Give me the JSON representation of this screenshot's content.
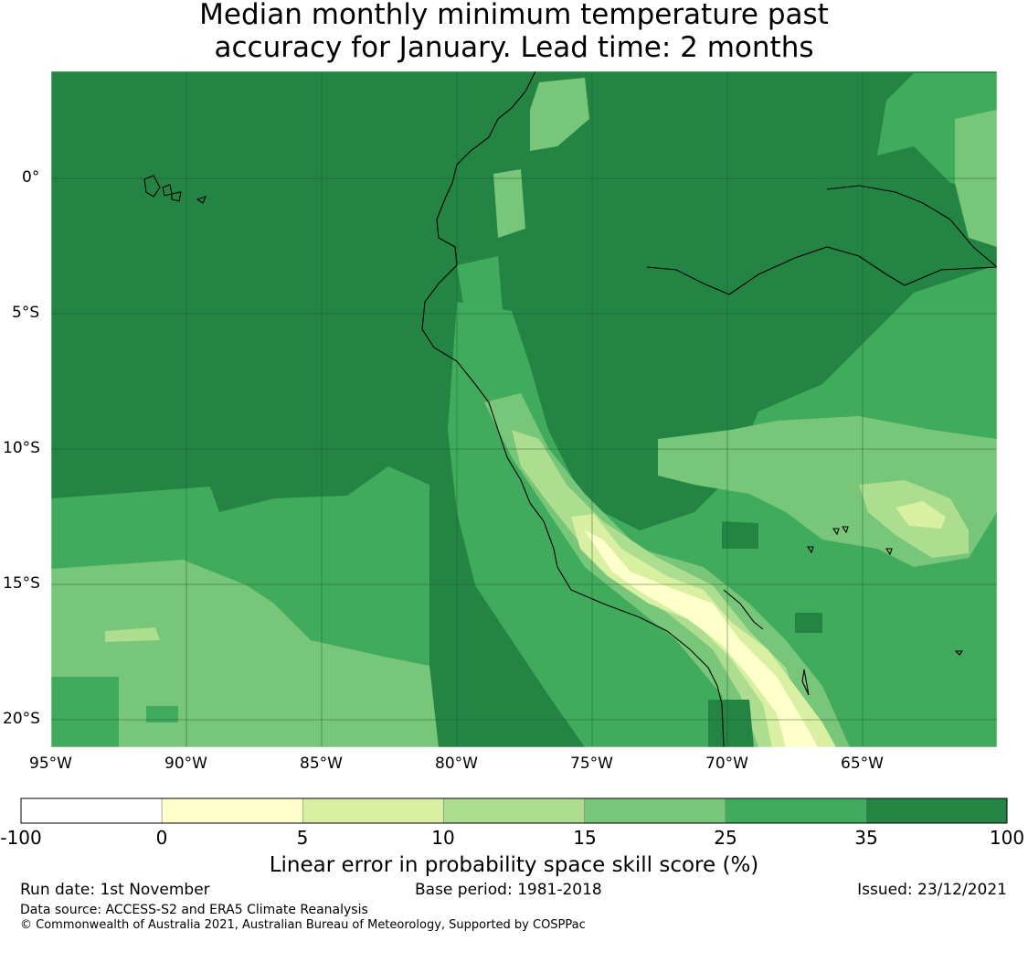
{
  "title": {
    "line1": "Median monthly minimum temperature past",
    "line2": "accuracy for January. Lead time: 2 months"
  },
  "map": {
    "lon_range": [
      -95,
      -60
    ],
    "lat_range": [
      -21,
      4
    ],
    "lat_labels": [
      "0°",
      "5°S",
      "10°S",
      "15°S",
      "20°S"
    ],
    "lat_values": [
      0,
      -5,
      -10,
      -15,
      -20
    ],
    "lon_labels": [
      "95°W",
      "90°W",
      "85°W",
      "80°W",
      "75°W",
      "70°W",
      "65°W"
    ],
    "lon_values": [
      -95,
      -90,
      -85,
      -80,
      -75,
      -70,
      -65
    ],
    "gridlines": true
  },
  "colorbar": {
    "title": "Linear error in probability space skill score (%)",
    "tick_labels": [
      "-100",
      "0",
      "5",
      "10",
      "15",
      "25",
      "35",
      "100"
    ],
    "bins": [
      {
        "from": -100,
        "to": 0,
        "color": "#ffffff"
      },
      {
        "from": 0,
        "to": 5,
        "color": "#ffffcc"
      },
      {
        "from": 5,
        "to": 10,
        "color": "#d9f0a3"
      },
      {
        "from": 10,
        "to": 15,
        "color": "#addd8e"
      },
      {
        "from": 15,
        "to": 25,
        "color": "#78c679"
      },
      {
        "from": 25,
        "to": 35,
        "color": "#41ab5d"
      },
      {
        "from": 35,
        "to": 100,
        "color": "#238443"
      }
    ]
  },
  "footer": {
    "run_date": "Run date: 1st November",
    "base_period": "Base period: 1981-2018",
    "issued": "Issued: 23/12/2021",
    "data_source": "Data source: ACCESS-S2 and ERA5 Climate Reanalysis",
    "copyright": "© Commonwealth of Australia 2021, Australian Bureau of Meteorology, Supported by COSPPac"
  }
}
